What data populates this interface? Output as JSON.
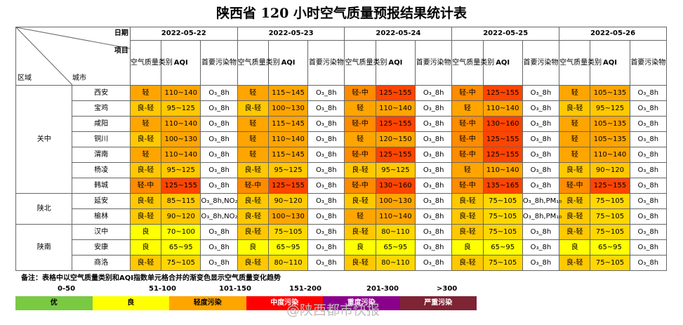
{
  "title": "陕西省 120 小时空气质量预报结果统计表",
  "header": {
    "date_label": "日期",
    "item_label": "项目",
    "region_label": "区域",
    "city_label": "城市",
    "sub_category": "空气质量类别",
    "sub_aqi": "AQI",
    "sub_pollutant": "首要污染物"
  },
  "dates": [
    "2022-05-22",
    "2022-05-23",
    "2022-05-24",
    "2022-05-25",
    "2022-05-26"
  ],
  "rows": [
    {
      "region": "关中",
      "city": "西安",
      "cells": [
        {
          "cat": "轻",
          "aqi": "110~140",
          "pol": "O₃_8h",
          "cc": "#ffa500",
          "ac": "#ffa500"
        },
        {
          "cat": "轻",
          "aqi": "115~145",
          "pol": "O₃_8h",
          "cc": "#ffa500",
          "ac": "#ffa500"
        },
        {
          "cat": "轻-中",
          "aqi": "125~155",
          "pol": "O₃_8h",
          "cc": "#ff8c00",
          "ac": "#ff4500"
        },
        {
          "cat": "轻-中",
          "aqi": "125~155",
          "pol": "O₃_8h",
          "cc": "#ff8c00",
          "ac": "#ff4500"
        },
        {
          "cat": "轻",
          "aqi": "105~135",
          "pol": "O₃_8h",
          "cc": "#ffa500",
          "ac": "#ffa500"
        }
      ]
    },
    {
      "region": "",
      "city": "宝鸡",
      "cells": [
        {
          "cat": "良-轻",
          "aqi": "95~125",
          "pol": "O₃_8h",
          "cc": "#ffc800",
          "ac": "#ffc800"
        },
        {
          "cat": "良-轻",
          "aqi": "100~130",
          "pol": "O₃_8h",
          "cc": "#ffc800",
          "ac": "#ffa500"
        },
        {
          "cat": "轻",
          "aqi": "110~140",
          "pol": "O₃_8h",
          "cc": "#ffa500",
          "ac": "#ffa500"
        },
        {
          "cat": "轻",
          "aqi": "110~140",
          "pol": "O₃_8h",
          "cc": "#ffa500",
          "ac": "#ffa500"
        },
        {
          "cat": "良-轻",
          "aqi": "95~125",
          "pol": "O₃_8h",
          "cc": "#ffc800",
          "ac": "#ffc800"
        }
      ]
    },
    {
      "region": "",
      "city": "咸阳",
      "cells": [
        {
          "cat": "轻",
          "aqi": "110~140",
          "pol": "O₃_8h",
          "cc": "#ffa500",
          "ac": "#ffa500"
        },
        {
          "cat": "轻",
          "aqi": "115~145",
          "pol": "O₃_8h",
          "cc": "#ffa500",
          "ac": "#ffa500"
        },
        {
          "cat": "轻-中",
          "aqi": "125~155",
          "pol": "O₃_8h",
          "cc": "#ff8c00",
          "ac": "#ff4500"
        },
        {
          "cat": "轻-中",
          "aqi": "130~160",
          "pol": "O₃_8h",
          "cc": "#ff8c00",
          "ac": "#ff4500"
        },
        {
          "cat": "轻",
          "aqi": "105~135",
          "pol": "O₃_8h",
          "cc": "#ffa500",
          "ac": "#ffa500"
        }
      ]
    },
    {
      "region": "",
      "city": "铜川",
      "cells": [
        {
          "cat": "良-轻",
          "aqi": "100~130",
          "pol": "O₃_8h",
          "cc": "#ffc800",
          "ac": "#ffa500"
        },
        {
          "cat": "轻",
          "aqi": "110~140",
          "pol": "O₃_8h",
          "cc": "#ffa500",
          "ac": "#ffa500"
        },
        {
          "cat": "轻",
          "aqi": "120~150",
          "pol": "O₃_8h",
          "cc": "#ffa500",
          "ac": "#ffa500"
        },
        {
          "cat": "轻-中",
          "aqi": "125~155",
          "pol": "O₃_8h",
          "cc": "#ff8c00",
          "ac": "#ff4500"
        },
        {
          "cat": "轻",
          "aqi": "105~135",
          "pol": "O₃_8h",
          "cc": "#ffa500",
          "ac": "#ffa500"
        }
      ]
    },
    {
      "region": "",
      "city": "渭南",
      "cells": [
        {
          "cat": "轻",
          "aqi": "110~140",
          "pol": "O₃_8h",
          "cc": "#ffa500",
          "ac": "#ffa500"
        },
        {
          "cat": "轻",
          "aqi": "115~145",
          "pol": "O₃_8h",
          "cc": "#ffa500",
          "ac": "#ffa500"
        },
        {
          "cat": "轻-中",
          "aqi": "125~155",
          "pol": "O₃_8h",
          "cc": "#ff8c00",
          "ac": "#ff4500"
        },
        {
          "cat": "轻-中",
          "aqi": "125~155",
          "pol": "O₃_8h",
          "cc": "#ff8c00",
          "ac": "#ff4500"
        },
        {
          "cat": "轻",
          "aqi": "110~140",
          "pol": "O₃_8h",
          "cc": "#ffa500",
          "ac": "#ffa500"
        }
      ]
    },
    {
      "region": "",
      "city": "杨凌",
      "cells": [
        {
          "cat": "良-轻",
          "aqi": "95~125",
          "pol": "O₃_8h",
          "cc": "#ffc800",
          "ac": "#ffc800"
        },
        {
          "cat": "良-轻",
          "aqi": "95~125",
          "pol": "O₃_8h",
          "cc": "#ffc800",
          "ac": "#ffc800"
        },
        {
          "cat": "良-轻",
          "aqi": "95~125",
          "pol": "O₃_8h",
          "cc": "#ffc800",
          "ac": "#ffc800"
        },
        {
          "cat": "轻",
          "aqi": "110~140",
          "pol": "O₃_8h",
          "cc": "#ffa500",
          "ac": "#ffa500"
        },
        {
          "cat": "良-轻",
          "aqi": "90~120",
          "pol": "O₃_8h",
          "cc": "#ffc800",
          "ac": "#ffc800"
        }
      ]
    },
    {
      "region": "",
      "city": "韩城",
      "cells": [
        {
          "cat": "轻-中",
          "aqi": "125~155",
          "pol": "O₃_8h",
          "cc": "#ff8c00",
          "ac": "#ff4500"
        },
        {
          "cat": "轻-中",
          "aqi": "125~155",
          "pol": "O₃_8h",
          "cc": "#ff8c00",
          "ac": "#ff4500"
        },
        {
          "cat": "轻-中",
          "aqi": "130~160",
          "pol": "O₃_8h",
          "cc": "#ff8c00",
          "ac": "#ff4500"
        },
        {
          "cat": "轻-中",
          "aqi": "135~165",
          "pol": "O₃_8h",
          "cc": "#ff8c00",
          "ac": "#ff4500"
        },
        {
          "cat": "轻-中",
          "aqi": "125~155",
          "pol": "O₃_8h",
          "cc": "#ff8c00",
          "ac": "#ff4500"
        }
      ]
    },
    {
      "region": "陕北",
      "city": "延安",
      "cells": [
        {
          "cat": "良-轻",
          "aqi": "85~115",
          "pol": "O₃_8h,NO₂",
          "cc": "#ffc800",
          "ac": "#ffc800"
        },
        {
          "cat": "良-轻",
          "aqi": "90~120",
          "pol": "O₃_8h",
          "cc": "#ffc800",
          "ac": "#ffc800"
        },
        {
          "cat": "良-轻",
          "aqi": "100~130",
          "pol": "O₃_8h",
          "cc": "#ffc800",
          "ac": "#ffa500"
        },
        {
          "cat": "良-轻",
          "aqi": "75~105",
          "pol": "O₃_8h,PM₁₀",
          "cc": "#ffc800",
          "ac": "#ffd700"
        },
        {
          "cat": "良-轻",
          "aqi": "75~105",
          "pol": "O₃_8h",
          "cc": "#ffc800",
          "ac": "#ffd700"
        }
      ]
    },
    {
      "region": "",
      "city": "榆林",
      "cells": [
        {
          "cat": "良-轻",
          "aqi": "90~120",
          "pol": "O₃_8h,NO₂",
          "cc": "#ffc800",
          "ac": "#ffc800"
        },
        {
          "cat": "良-轻",
          "aqi": "100~130",
          "pol": "O₃_8h",
          "cc": "#ffc800",
          "ac": "#ffa500"
        },
        {
          "cat": "轻",
          "aqi": "110~140",
          "pol": "O₃_8h",
          "cc": "#ffa500",
          "ac": "#ffa500"
        },
        {
          "cat": "良-轻",
          "aqi": "75~105",
          "pol": "O₃_8h,PM₁₀",
          "cc": "#ffc800",
          "ac": "#ffd700"
        },
        {
          "cat": "良-轻",
          "aqi": "75~105",
          "pol": "O₃_8h",
          "cc": "#ffc800",
          "ac": "#ffd700"
        }
      ]
    },
    {
      "region": "陕南",
      "city": "汉中",
      "cells": [
        {
          "cat": "良",
          "aqi": "70~100",
          "pol": "O₃_8h",
          "cc": "#ffff00",
          "ac": "#ffff00"
        },
        {
          "cat": "良-轻",
          "aqi": "75~105",
          "pol": "O₃_8h",
          "cc": "#ffc800",
          "ac": "#ffd700"
        },
        {
          "cat": "良-轻",
          "aqi": "80~110",
          "pol": "O₃_8h",
          "cc": "#ffc800",
          "ac": "#ffd700"
        },
        {
          "cat": "良-轻",
          "aqi": "75~105",
          "pol": "O₃_8h",
          "cc": "#ffc800",
          "ac": "#ffd700"
        },
        {
          "cat": "良-轻",
          "aqi": "75~105",
          "pol": "O₃_8h",
          "cc": "#ffc800",
          "ac": "#ffd700"
        }
      ]
    },
    {
      "region": "",
      "city": "安康",
      "cells": [
        {
          "cat": "良",
          "aqi": "65~95",
          "pol": "O₃_8h",
          "cc": "#ffff00",
          "ac": "#ffff00"
        },
        {
          "cat": "良",
          "aqi": "65~95",
          "pol": "O₃_8h",
          "cc": "#ffff00",
          "ac": "#ffff00"
        },
        {
          "cat": "良",
          "aqi": "65~95",
          "pol": "O₃_8h",
          "cc": "#ffff00",
          "ac": "#ffff00"
        },
        {
          "cat": "良",
          "aqi": "65~95",
          "pol": "O₃_8h",
          "cc": "#ffff00",
          "ac": "#ffff00"
        },
        {
          "cat": "良",
          "aqi": "65~95",
          "pol": "O₃_8h",
          "cc": "#ffff00",
          "ac": "#ffff00"
        }
      ]
    },
    {
      "region": "",
      "city": "商洛",
      "cells": [
        {
          "cat": "良-轻",
          "aqi": "75~105",
          "pol": "O₃_8h",
          "cc": "#ffc800",
          "ac": "#ffd700"
        },
        {
          "cat": "良-轻",
          "aqi": "80~110",
          "pol": "O₃_8h",
          "cc": "#ffc800",
          "ac": "#ffd700"
        },
        {
          "cat": "良-轻",
          "aqi": "80~110",
          "pol": "O₃_8h",
          "cc": "#ffc800",
          "ac": "#ffd700"
        },
        {
          "cat": "良-轻",
          "aqi": "75~105",
          "pol": "O₃_8h",
          "cc": "#ffc800",
          "ac": "#ffd700"
        },
        {
          "cat": "良-轻",
          "aqi": "75~105",
          "pol": "O₃_8h",
          "cc": "#ffc800",
          "ac": "#ffd700"
        }
      ]
    }
  ],
  "regions": [
    {
      "name": "关中",
      "span": 7
    },
    {
      "name": "陕北",
      "span": 2
    },
    {
      "name": "陕南",
      "span": 3
    }
  ],
  "notes": {
    "text": "备注：表格中以空气质量类别和AQI指数单元格合并的渐变色显示空气质量变化趋势",
    "ranges": [
      "0-50",
      "51-100",
      "101-150",
      "151-200",
      "201-300",
      ">300"
    ],
    "legend": [
      {
        "label": "优",
        "color": "#7ac943"
      },
      {
        "label": "良",
        "color": "#ffff00"
      },
      {
        "label": "轻度污染",
        "color": "#ffa500"
      },
      {
        "label": "中度污染",
        "color": "#ff0000"
      },
      {
        "label": "重度污染",
        "color": "#8b008b"
      },
      {
        "label": "严重污染",
        "color": "#7e2434"
      }
    ]
  },
  "watermark": "@陕西都市快报"
}
